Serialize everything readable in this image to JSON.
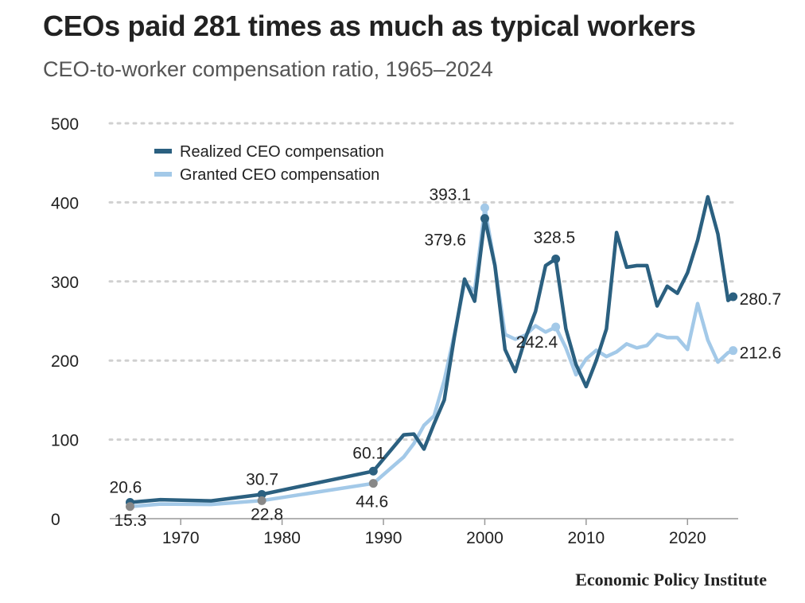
{
  "chart_data": {
    "type": "line",
    "title": "CEOs paid 281 times as much as typical workers",
    "subtitle": "CEO-to-worker compensation ratio, 1965–2024",
    "xlabel": "",
    "ylabel": "",
    "xlim": [
      1963,
      2025
    ],
    "ylim": [
      0,
      500
    ],
    "x_ticks": [
      1970,
      1980,
      1990,
      2000,
      2010,
      2020
    ],
    "y_ticks": [
      0,
      100,
      200,
      300,
      400,
      500
    ],
    "grid": "horizontal dotted",
    "legend_position": "top-left",
    "series": [
      {
        "name": "Realized CEO compensation",
        "color": "#2b6080",
        "points": [
          [
            1965,
            20.6
          ],
          [
            1968,
            24
          ],
          [
            1973,
            22.5
          ],
          [
            1978,
            30.7
          ],
          [
            1989,
            60.1
          ],
          [
            1992,
            106
          ],
          [
            1993,
            107
          ],
          [
            1994,
            88
          ],
          [
            1995,
            120
          ],
          [
            1996,
            150
          ],
          [
            1997,
            230
          ],
          [
            1998,
            303
          ],
          [
            1999,
            275
          ],
          [
            2000,
            379.6
          ],
          [
            2001,
            320
          ],
          [
            2002,
            214
          ],
          [
            2003,
            186
          ],
          [
            2004,
            228
          ],
          [
            2005,
            262
          ],
          [
            2006,
            320
          ],
          [
            2007,
            328.5
          ],
          [
            2008,
            240
          ],
          [
            2009,
            195
          ],
          [
            2010,
            167
          ],
          [
            2011,
            200
          ],
          [
            2012,
            240
          ],
          [
            2013,
            362
          ],
          [
            2014,
            318
          ],
          [
            2015,
            320
          ],
          [
            2016,
            320
          ],
          [
            2017,
            269
          ],
          [
            2018,
            294
          ],
          [
            2019,
            285
          ],
          [
            2020,
            311
          ],
          [
            2021,
            352
          ],
          [
            2022,
            407
          ],
          [
            2023,
            360
          ],
          [
            2024,
            276
          ],
          [
            2024.5,
            280.7
          ]
        ],
        "labels": [
          {
            "x": 1965,
            "y": 20.6,
            "text": "20.6"
          },
          {
            "x": 1978,
            "y": 30.7,
            "text": "30.7"
          },
          {
            "x": 1989,
            "y": 60.1,
            "text": "60.1"
          },
          {
            "x": 2000,
            "y": 379.6,
            "text": "379.6"
          },
          {
            "x": 2007,
            "y": 328.5,
            "text": "328.5"
          },
          {
            "x": 2024.5,
            "y": 280.7,
            "text": "280.7"
          }
        ]
      },
      {
        "name": "Granted CEO compensation",
        "color": "#a3c9e8",
        "points": [
          [
            1965,
            15.3
          ],
          [
            1968,
            18.5
          ],
          [
            1973,
            18
          ],
          [
            1978,
            22.8
          ],
          [
            1989,
            44.6
          ],
          [
            1992,
            78
          ],
          [
            1993,
            95
          ],
          [
            1994,
            118
          ],
          [
            1995,
            130
          ],
          [
            1996,
            175
          ],
          [
            1997,
            233
          ],
          [
            1998,
            298
          ],
          [
            1999,
            288
          ],
          [
            2000,
            393.1
          ],
          [
            2001,
            320
          ],
          [
            2002,
            233
          ],
          [
            2003,
            227
          ],
          [
            2004,
            232
          ],
          [
            2005,
            244
          ],
          [
            2006,
            236
          ],
          [
            2007,
            242.4
          ],
          [
            2008,
            216
          ],
          [
            2009,
            182
          ],
          [
            2010,
            202
          ],
          [
            2011,
            213
          ],
          [
            2012,
            205
          ],
          [
            2013,
            211
          ],
          [
            2014,
            221
          ],
          [
            2015,
            216
          ],
          [
            2016,
            219
          ],
          [
            2017,
            233
          ],
          [
            2018,
            229
          ],
          [
            2019,
            229
          ],
          [
            2020,
            214
          ],
          [
            2021,
            272
          ],
          [
            2022,
            226
          ],
          [
            2023,
            198
          ],
          [
            2024,
            210
          ],
          [
            2024.5,
            212.6
          ]
        ],
        "labels": [
          {
            "x": 1965,
            "y": 15.3,
            "text": "15.3"
          },
          {
            "x": 1978,
            "y": 22.8,
            "text": "22.8"
          },
          {
            "x": 1989,
            "y": 44.6,
            "text": "44.6"
          },
          {
            "x": 2000,
            "y": 393.1,
            "text": "393.1"
          },
          {
            "x": 2007,
            "y": 242.4,
            "text": "242.4"
          },
          {
            "x": 2024.5,
            "y": 212.6,
            "text": "212.6"
          }
        ]
      }
    ],
    "marker_color": "#888888",
    "grid_color": "#d0d0d0"
  },
  "source": "Economic Policy Institute"
}
